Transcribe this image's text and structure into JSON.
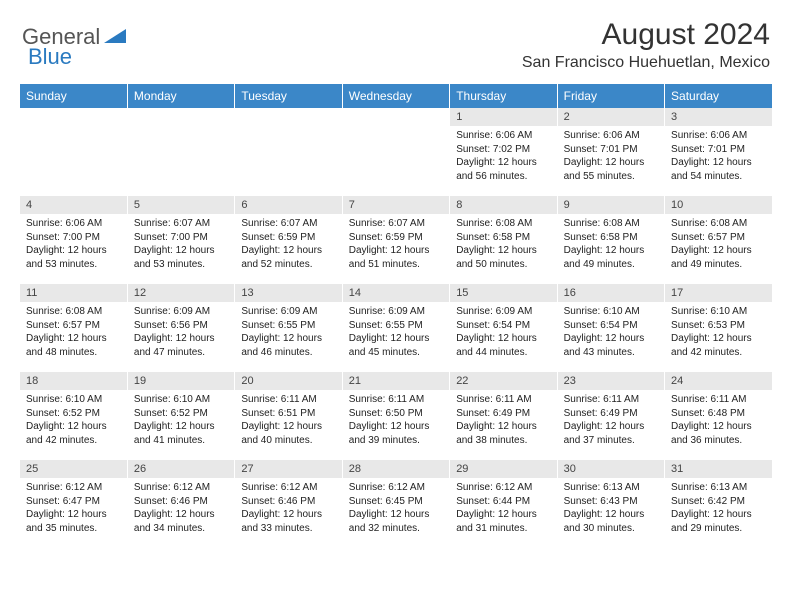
{
  "logo": {
    "general": "General",
    "blue": "Blue"
  },
  "header": {
    "month": "August 2024",
    "location": "San Francisco Huehuetlan, Mexico"
  },
  "colors": {
    "header_bg": "#3b87c8",
    "header_text": "#ffffff",
    "daynum_bg": "#e8e8e8",
    "text": "#222222",
    "logo_blue": "#2a7ac0",
    "logo_gray": "#555555"
  },
  "weekdays": [
    "Sunday",
    "Monday",
    "Tuesday",
    "Wednesday",
    "Thursday",
    "Friday",
    "Saturday"
  ],
  "weeks": [
    [
      {
        "empty": true
      },
      {
        "empty": true
      },
      {
        "empty": true
      },
      {
        "empty": true
      },
      {
        "day": "1",
        "sunrise": "Sunrise: 6:06 AM",
        "sunset": "Sunset: 7:02 PM",
        "daylight": "Daylight: 12 hours and 56 minutes."
      },
      {
        "day": "2",
        "sunrise": "Sunrise: 6:06 AM",
        "sunset": "Sunset: 7:01 PM",
        "daylight": "Daylight: 12 hours and 55 minutes."
      },
      {
        "day": "3",
        "sunrise": "Sunrise: 6:06 AM",
        "sunset": "Sunset: 7:01 PM",
        "daylight": "Daylight: 12 hours and 54 minutes."
      }
    ],
    [
      {
        "day": "4",
        "sunrise": "Sunrise: 6:06 AM",
        "sunset": "Sunset: 7:00 PM",
        "daylight": "Daylight: 12 hours and 53 minutes."
      },
      {
        "day": "5",
        "sunrise": "Sunrise: 6:07 AM",
        "sunset": "Sunset: 7:00 PM",
        "daylight": "Daylight: 12 hours and 53 minutes."
      },
      {
        "day": "6",
        "sunrise": "Sunrise: 6:07 AM",
        "sunset": "Sunset: 6:59 PM",
        "daylight": "Daylight: 12 hours and 52 minutes."
      },
      {
        "day": "7",
        "sunrise": "Sunrise: 6:07 AM",
        "sunset": "Sunset: 6:59 PM",
        "daylight": "Daylight: 12 hours and 51 minutes."
      },
      {
        "day": "8",
        "sunrise": "Sunrise: 6:08 AM",
        "sunset": "Sunset: 6:58 PM",
        "daylight": "Daylight: 12 hours and 50 minutes."
      },
      {
        "day": "9",
        "sunrise": "Sunrise: 6:08 AM",
        "sunset": "Sunset: 6:58 PM",
        "daylight": "Daylight: 12 hours and 49 minutes."
      },
      {
        "day": "10",
        "sunrise": "Sunrise: 6:08 AM",
        "sunset": "Sunset: 6:57 PM",
        "daylight": "Daylight: 12 hours and 49 minutes."
      }
    ],
    [
      {
        "day": "11",
        "sunrise": "Sunrise: 6:08 AM",
        "sunset": "Sunset: 6:57 PM",
        "daylight": "Daylight: 12 hours and 48 minutes."
      },
      {
        "day": "12",
        "sunrise": "Sunrise: 6:09 AM",
        "sunset": "Sunset: 6:56 PM",
        "daylight": "Daylight: 12 hours and 47 minutes."
      },
      {
        "day": "13",
        "sunrise": "Sunrise: 6:09 AM",
        "sunset": "Sunset: 6:55 PM",
        "daylight": "Daylight: 12 hours and 46 minutes."
      },
      {
        "day": "14",
        "sunrise": "Sunrise: 6:09 AM",
        "sunset": "Sunset: 6:55 PM",
        "daylight": "Daylight: 12 hours and 45 minutes."
      },
      {
        "day": "15",
        "sunrise": "Sunrise: 6:09 AM",
        "sunset": "Sunset: 6:54 PM",
        "daylight": "Daylight: 12 hours and 44 minutes."
      },
      {
        "day": "16",
        "sunrise": "Sunrise: 6:10 AM",
        "sunset": "Sunset: 6:54 PM",
        "daylight": "Daylight: 12 hours and 43 minutes."
      },
      {
        "day": "17",
        "sunrise": "Sunrise: 6:10 AM",
        "sunset": "Sunset: 6:53 PM",
        "daylight": "Daylight: 12 hours and 42 minutes."
      }
    ],
    [
      {
        "day": "18",
        "sunrise": "Sunrise: 6:10 AM",
        "sunset": "Sunset: 6:52 PM",
        "daylight": "Daylight: 12 hours and 42 minutes."
      },
      {
        "day": "19",
        "sunrise": "Sunrise: 6:10 AM",
        "sunset": "Sunset: 6:52 PM",
        "daylight": "Daylight: 12 hours and 41 minutes."
      },
      {
        "day": "20",
        "sunrise": "Sunrise: 6:11 AM",
        "sunset": "Sunset: 6:51 PM",
        "daylight": "Daylight: 12 hours and 40 minutes."
      },
      {
        "day": "21",
        "sunrise": "Sunrise: 6:11 AM",
        "sunset": "Sunset: 6:50 PM",
        "daylight": "Daylight: 12 hours and 39 minutes."
      },
      {
        "day": "22",
        "sunrise": "Sunrise: 6:11 AM",
        "sunset": "Sunset: 6:49 PM",
        "daylight": "Daylight: 12 hours and 38 minutes."
      },
      {
        "day": "23",
        "sunrise": "Sunrise: 6:11 AM",
        "sunset": "Sunset: 6:49 PM",
        "daylight": "Daylight: 12 hours and 37 minutes."
      },
      {
        "day": "24",
        "sunrise": "Sunrise: 6:11 AM",
        "sunset": "Sunset: 6:48 PM",
        "daylight": "Daylight: 12 hours and 36 minutes."
      }
    ],
    [
      {
        "day": "25",
        "sunrise": "Sunrise: 6:12 AM",
        "sunset": "Sunset: 6:47 PM",
        "daylight": "Daylight: 12 hours and 35 minutes."
      },
      {
        "day": "26",
        "sunrise": "Sunrise: 6:12 AM",
        "sunset": "Sunset: 6:46 PM",
        "daylight": "Daylight: 12 hours and 34 minutes."
      },
      {
        "day": "27",
        "sunrise": "Sunrise: 6:12 AM",
        "sunset": "Sunset: 6:46 PM",
        "daylight": "Daylight: 12 hours and 33 minutes."
      },
      {
        "day": "28",
        "sunrise": "Sunrise: 6:12 AM",
        "sunset": "Sunset: 6:45 PM",
        "daylight": "Daylight: 12 hours and 32 minutes."
      },
      {
        "day": "29",
        "sunrise": "Sunrise: 6:12 AM",
        "sunset": "Sunset: 6:44 PM",
        "daylight": "Daylight: 12 hours and 31 minutes."
      },
      {
        "day": "30",
        "sunrise": "Sunrise: 6:13 AM",
        "sunset": "Sunset: 6:43 PM",
        "daylight": "Daylight: 12 hours and 30 minutes."
      },
      {
        "day": "31",
        "sunrise": "Sunrise: 6:13 AM",
        "sunset": "Sunset: 6:42 PM",
        "daylight": "Daylight: 12 hours and 29 minutes."
      }
    ]
  ]
}
